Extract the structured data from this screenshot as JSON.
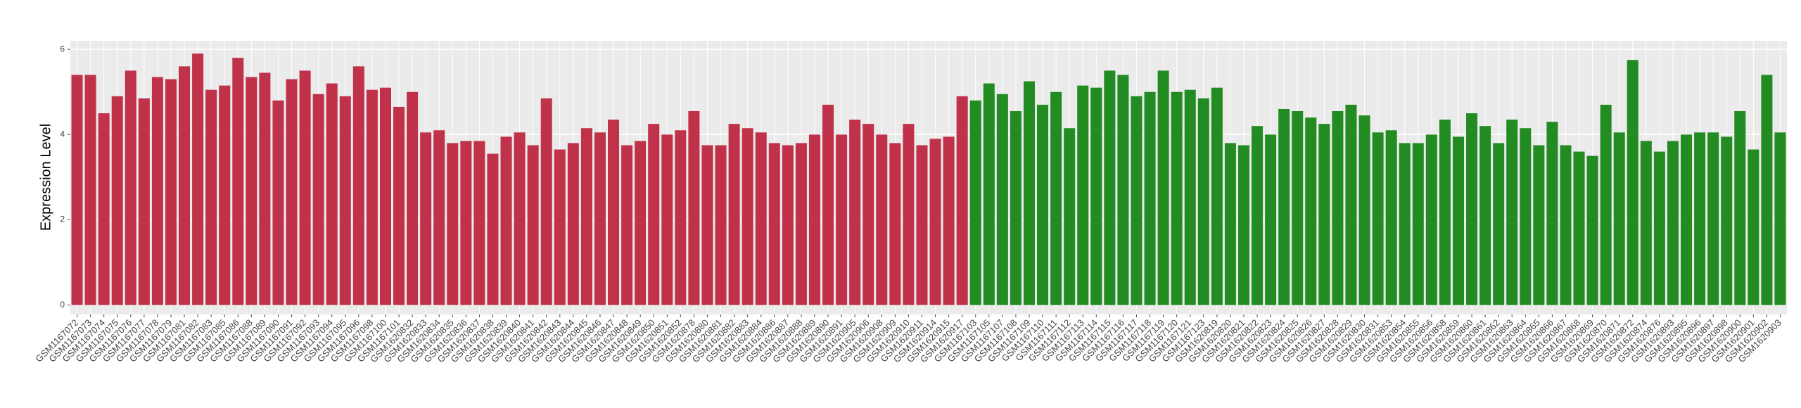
{
  "chart_data": {
    "type": "bar",
    "y_label": "Expression Level",
    "categories": [
      "GSM1167072",
      "GSM1167073",
      "GSM1167074",
      "GSM1167075",
      "GSM1167076",
      "GSM1167077",
      "GSM1167078",
      "GSM1167079",
      "GSM1167081",
      "GSM1167082",
      "GSM1167083",
      "GSM1167085",
      "GSM1167086",
      "GSM1167088",
      "GSM1167089",
      "GSM1167090",
      "GSM1167091",
      "GSM1167092",
      "GSM1167093",
      "GSM1167094",
      "GSM1167095",
      "GSM1167096",
      "GSM1167098",
      "GSM1167100",
      "GSM1167101",
      "GSM1620832",
      "GSM1620833",
      "GSM1620834",
      "GSM1620835",
      "GSM1620836",
      "GSM1620837",
      "GSM1620838",
      "GSM1620839",
      "GSM1620840",
      "GSM1620841",
      "GSM1620842",
      "GSM1620843",
      "GSM1620844",
      "GSM1620845",
      "GSM1620846",
      "GSM1620847",
      "GSM1620848",
      "GSM1620849",
      "GSM1620850",
      "GSM1620851",
      "GSM1620852",
      "GSM1620878",
      "GSM1620880",
      "GSM1620881",
      "GSM1620882",
      "GSM1620883",
      "GSM1620884",
      "GSM1620886",
      "GSM1620887",
      "GSM1620888",
      "GSM1620889",
      "GSM1620890",
      "GSM1620891",
      "GSM1620905",
      "GSM1620906",
      "GSM1620908",
      "GSM1620909",
      "GSM1620910",
      "GSM1620911",
      "GSM1620914",
      "GSM1620915",
      "GSM1620917",
      "GSM1167103",
      "GSM1167105",
      "GSM1167107",
      "GSM1167108",
      "GSM1167109",
      "GSM1167110",
      "GSM1167111",
      "GSM1167112",
      "GSM1167113",
      "GSM1167114",
      "GSM1167115",
      "GSM1167116",
      "GSM1167117",
      "GSM1167118",
      "GSM1167119",
      "GSM1167120",
      "GSM1167121",
      "GSM1167123",
      "GSM1620819",
      "GSM1620820",
      "GSM1620821",
      "GSM1620822",
      "GSM1620823",
      "GSM1620824",
      "GSM1620825",
      "GSM1620826",
      "GSM1620827",
      "GSM1620828",
      "GSM1620829",
      "GSM1620830",
      "GSM1620831",
      "GSM1620853",
      "GSM1620854",
      "GSM1620855",
      "GSM1620856",
      "GSM1620858",
      "GSM1620859",
      "GSM1620860",
      "GSM1620861",
      "GSM1620862",
      "GSM1620863",
      "GSM1620864",
      "GSM1620865",
      "GSM1620866",
      "GSM1620867",
      "GSM1620868",
      "GSM1620869",
      "GSM1620870",
      "GSM1620871",
      "GSM1620872",
      "GSM1620874",
      "GSM1620876",
      "GSM1620893",
      "GSM1620895",
      "GSM1620896",
      "GSM1620897",
      "GSM1620898",
      "GSM1620900",
      "GSM1620901",
      "GSM1620902",
      "GSM1620903"
    ],
    "series": [
      {
        "color": "#c0314a",
        "values": [
          5.4,
          5.4,
          4.5,
          4.9,
          5.5,
          4.85,
          5.35,
          5.3,
          5.6,
          5.9,
          5.05,
          5.15,
          5.8,
          5.35,
          5.45,
          4.8,
          5.3,
          5.5,
          4.95,
          5.2,
          4.9,
          5.6,
          5.05,
          5.1,
          4.65,
          5.0,
          4.05,
          4.1,
          3.8,
          3.85,
          3.85,
          3.55,
          3.95,
          4.05,
          3.75,
          4.85,
          3.65,
          3.8,
          4.15,
          4.05,
          4.35,
          3.75,
          3.85,
          4.25,
          4.0,
          4.1,
          4.55,
          3.75,
          3.75,
          4.25,
          4.15,
          4.05,
          3.8,
          3.75,
          3.8,
          4.0,
          4.7,
          4.0,
          4.35,
          4.25,
          4.0,
          3.8,
          4.25,
          3.75,
          3.9,
          3.95,
          4.9,
          null,
          null,
          null,
          null,
          null,
          null,
          null,
          null,
          null,
          null,
          null,
          null,
          null,
          null,
          null,
          null,
          null,
          null,
          null,
          null,
          null,
          null,
          null,
          null,
          null,
          null,
          null,
          null,
          null,
          null,
          null,
          null,
          null,
          null,
          null,
          null,
          null,
          null,
          null,
          null,
          null,
          null,
          null,
          null,
          null,
          null,
          null,
          null,
          null,
          null,
          null,
          null,
          null,
          null,
          null,
          null,
          null,
          null,
          null,
          null,
          null
        ]
      },
      {
        "color": "#228b22",
        "values": [
          null,
          null,
          null,
          null,
          null,
          null,
          null,
          null,
          null,
          null,
          null,
          null,
          null,
          null,
          null,
          null,
          null,
          null,
          null,
          null,
          null,
          null,
          null,
          null,
          null,
          null,
          null,
          null,
          null,
          null,
          null,
          null,
          null,
          null,
          null,
          null,
          null,
          null,
          null,
          null,
          null,
          null,
          null,
          null,
          null,
          null,
          null,
          null,
          null,
          null,
          null,
          null,
          null,
          null,
          null,
          null,
          null,
          null,
          null,
          null,
          null,
          null,
          null,
          null,
          null,
          null,
          null,
          4.8,
          5.2,
          4.95,
          4.55,
          5.25,
          4.7,
          5.0,
          4.15,
          5.15,
          5.1,
          5.5,
          5.4,
          4.9,
          5.0,
          5.5,
          5.0,
          5.05,
          4.85,
          5.1,
          3.8,
          3.75,
          4.2,
          4.0,
          4.6,
          4.55,
          4.4,
          4.25,
          4.55,
          4.7,
          4.45,
          4.05,
          4.1,
          3.8,
          3.8,
          4.0,
          4.35,
          3.95,
          4.5,
          4.2,
          3.8,
          4.35,
          4.15,
          3.75,
          4.3,
          3.75,
          3.6,
          3.5,
          4.7,
          4.05,
          5.75,
          3.85,
          3.6,
          3.85,
          4.0,
          4.05,
          4.05,
          3.95,
          4.55,
          3.65,
          5.4,
          4.05
        ]
      }
    ],
    "ylim": [
      -0.22,
      6.2
    ],
    "yticks": [
      0,
      2,
      4,
      6
    ],
    "grid": true
  }
}
